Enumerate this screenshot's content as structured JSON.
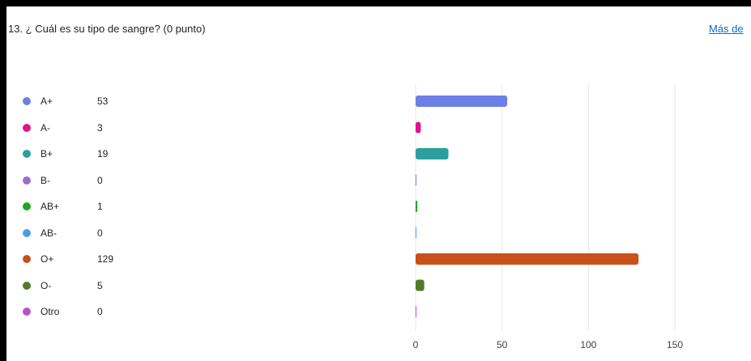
{
  "question": {
    "title": "13. ¿ Cuál es su tipo de sangre? (0 punto)",
    "more_link": "Más de"
  },
  "chart_data": {
    "type": "bar",
    "orientation": "horizontal",
    "categories": [
      "A+",
      "A-",
      "B+",
      "B-",
      "AB+",
      "AB-",
      "O+",
      "O-",
      "Otro"
    ],
    "values": [
      53,
      3,
      19,
      0,
      1,
      0,
      129,
      5,
      0
    ],
    "colors": [
      "#6b7fe6",
      "#e3128c",
      "#2b9e9e",
      "#9b6fc9",
      "#1ea81e",
      "#4a9ee6",
      "#c9501a",
      "#4f7a28",
      "#b455c9"
    ],
    "x_ticks": [
      0,
      50,
      100,
      150
    ],
    "xlim": [
      0,
      150
    ],
    "grid": true,
    "legend_position": "left"
  }
}
